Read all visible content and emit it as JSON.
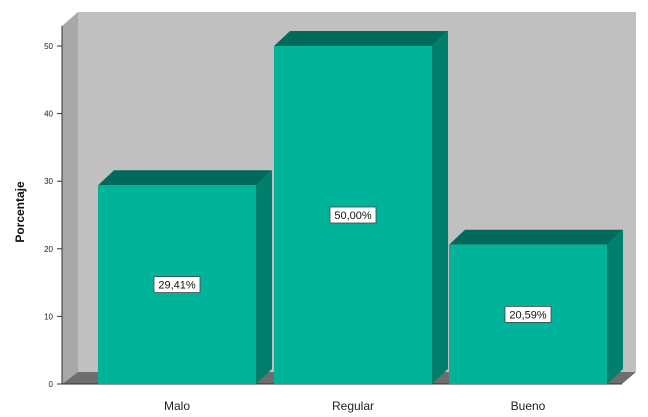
{
  "chart_data": {
    "type": "bar",
    "title": "",
    "xlabel": "",
    "ylabel": "Porcentaje",
    "categories": [
      "Malo",
      "Regular",
      "Bueno"
    ],
    "values": [
      29.41,
      50.0,
      20.59
    ],
    "data_labels": [
      "29,41%",
      "50,00%",
      "20,59%"
    ],
    "ylim": [
      0,
      50
    ],
    "yticks": [
      0,
      10,
      20,
      30,
      40,
      50
    ],
    "grid": false,
    "legend": "none",
    "style": "3d",
    "colors": {
      "bar_front": "#00b39b",
      "bar_top": "#006b5a",
      "bar_side": "#00806c",
      "plot_back": "#c0c0c0",
      "plot_wall": "#a8a8a8",
      "plot_floor": "#6e6e6e"
    }
  }
}
